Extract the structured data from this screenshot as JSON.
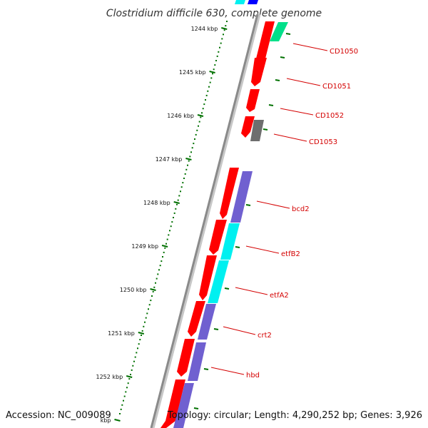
{
  "title": "Clostridium difficile 630, complete genome",
  "footer": {
    "accession": "Accession: NC_009089",
    "summary": "Topology: circular; Length: 4,290,252 bp; Genes: 3,926"
  },
  "ticks": [
    {
      "label": "1244 kbp",
      "kbp": 1244
    },
    {
      "label": "1245 kbp",
      "kbp": 1245
    },
    {
      "label": "1246 kbp",
      "kbp": 1246
    },
    {
      "label": "1247 kbp",
      "kbp": 1247
    },
    {
      "label": "1248 kbp",
      "kbp": 1248
    },
    {
      "label": "1249 kbp",
      "kbp": 1249
    },
    {
      "label": "1250 kbp",
      "kbp": 1250
    },
    {
      "label": "1251 kbp",
      "kbp": 1251
    },
    {
      "label": "1252 kbp",
      "kbp": 1252
    },
    {
      "label": "kbp",
      "kbp": 1253
    }
  ],
  "gene_labels": [
    {
      "name": "CD1050"
    },
    {
      "name": "CD1051"
    },
    {
      "name": "CD1052"
    },
    {
      "name": "CD1053"
    },
    {
      "name": "bcd2"
    },
    {
      "name": "etfB2"
    },
    {
      "name": "etfA2"
    },
    {
      "name": "crt2"
    },
    {
      "name": "hbd"
    }
  ],
  "colors": {
    "forward_cds": "#ff0000",
    "cog_spring_green": "#00e08a",
    "cog_grey": "#6e6e6e",
    "cog_slate_blue": "#7060d0",
    "cog_cyan": "#00f0f0",
    "cog_blue": "#0000ff",
    "backbone": "#8a8a8a",
    "tick_marks": "#007000",
    "label_text": "#d40000"
  }
}
